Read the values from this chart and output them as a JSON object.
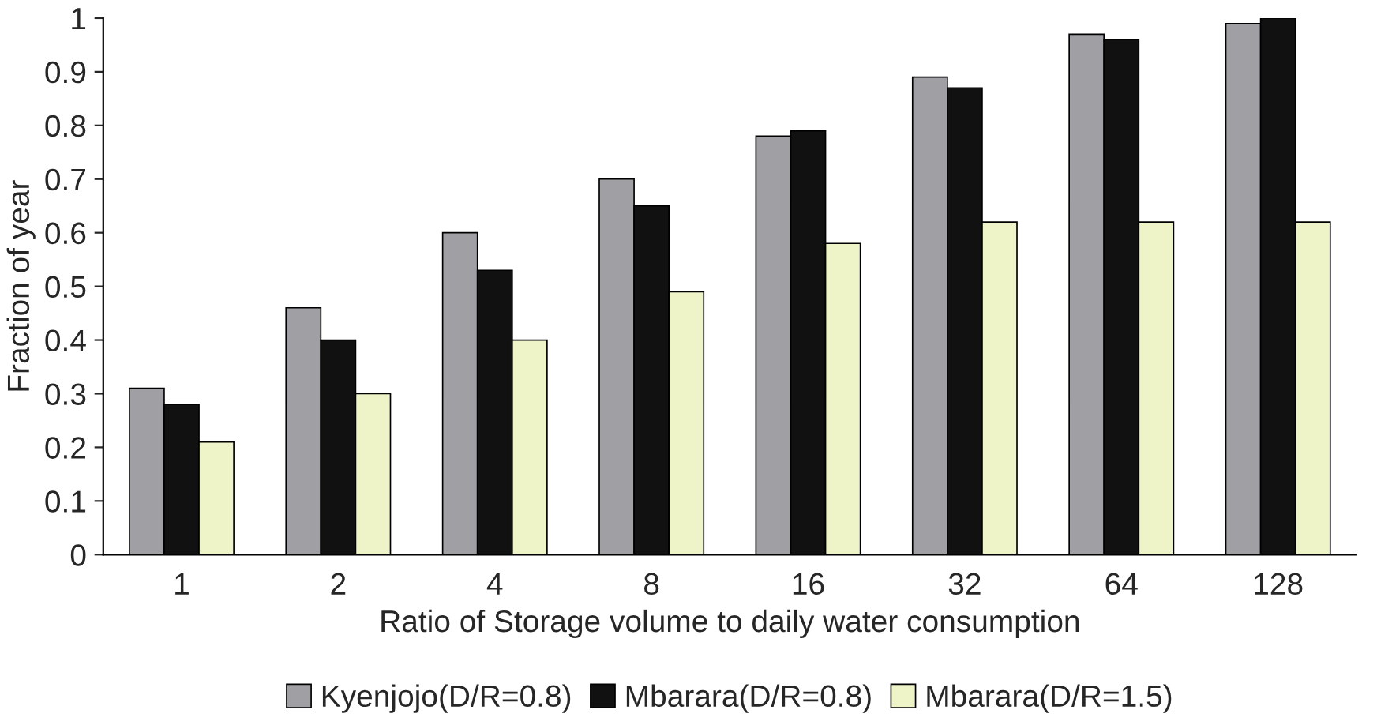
{
  "chart_data": {
    "type": "bar",
    "xlabel": "Ratio of Storage volume to daily water consumption",
    "ylabel": "Fraction of year",
    "categories": [
      "1",
      "2",
      "4",
      "8",
      "16",
      "32",
      "64",
      "128"
    ],
    "series": [
      {
        "name": "Kyenjojo(D/R=0.8)",
        "color": "#a0a0a4",
        "values": [
          0.31,
          0.46,
          0.6,
          0.7,
          0.78,
          0.89,
          0.97,
          0.99
        ]
      },
      {
        "name": "Mbarara(D/R=0.8)",
        "color": "#111111",
        "values": [
          0.28,
          0.4,
          0.53,
          0.65,
          0.79,
          0.87,
          0.96,
          1.0
        ]
      },
      {
        "name": "Mbarara(D/R=1.5)",
        "color": "#eef3c8",
        "values": [
          0.21,
          0.3,
          0.4,
          0.49,
          0.58,
          0.62,
          0.62,
          0.62
        ]
      }
    ],
    "ylim": [
      0,
      1
    ],
    "yticks": [
      0,
      0.1,
      0.2,
      0.3,
      0.4,
      0.5,
      0.6,
      0.7,
      0.8,
      0.9,
      1
    ],
    "grid": false,
    "legend": "bottom"
  }
}
